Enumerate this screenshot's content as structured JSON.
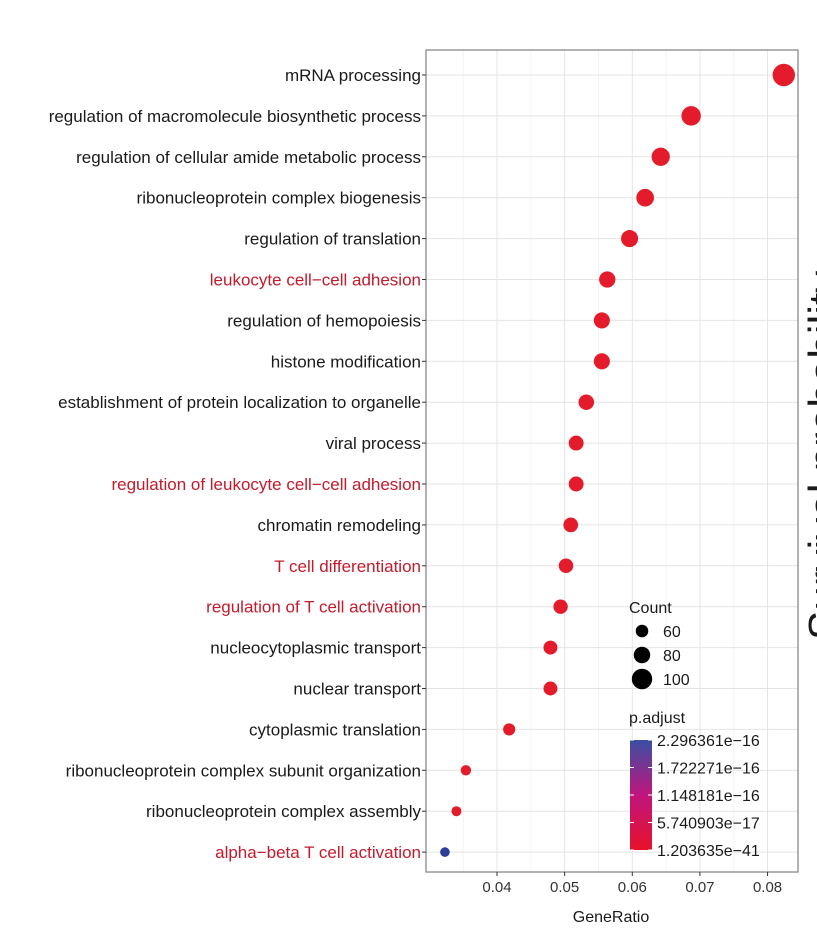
{
  "chart_data": {
    "type": "scatter",
    "xlabel": "GeneRatio",
    "xlim": [
      0.0295,
      0.0845
    ],
    "x_ticks": [
      {
        "value": 0.04,
        "label": "0.04"
      },
      {
        "value": 0.05,
        "label": "0.05"
      },
      {
        "value": 0.06,
        "label": "0.06"
      },
      {
        "value": 0.07,
        "label": "0.07"
      },
      {
        "value": 0.08,
        "label": "0.08"
      }
    ],
    "terms": [
      {
        "term": "mRNA processing",
        "x": 0.0824,
        "count": 110,
        "color": "#e41b2a",
        "label_color": "#1a1a1a"
      },
      {
        "term": "regulation of macromolecule biosynthetic process",
        "x": 0.0687,
        "count": 95,
        "color": "#e41b2a",
        "label_color": "#1a1a1a"
      },
      {
        "term": "regulation of cellular amide metabolic process",
        "x": 0.0642,
        "count": 89,
        "color": "#e41b2a",
        "label_color": "#1a1a1a"
      },
      {
        "term": "ribonucleoprotein complex biogenesis",
        "x": 0.0619,
        "count": 86,
        "color": "#e41b2a",
        "label_color": "#1a1a1a"
      },
      {
        "term": "regulation of translation",
        "x": 0.0596,
        "count": 83,
        "color": "#e41b2a",
        "label_color": "#1a1a1a"
      },
      {
        "term": "leukocyte cell−cell adhesion",
        "x": 0.0563,
        "count": 79,
        "color": "#e41b2a",
        "label_color": "#c41a2c"
      },
      {
        "term": "regulation of hemopoiesis",
        "x": 0.0555,
        "count": 78,
        "color": "#e41b2a",
        "label_color": "#1a1a1a"
      },
      {
        "term": "histone modification",
        "x": 0.0555,
        "count": 78,
        "color": "#e41b2a",
        "label_color": "#1a1a1a"
      },
      {
        "term": "establishment of protein localization to organelle",
        "x": 0.0532,
        "count": 75,
        "color": "#e41b2a",
        "label_color": "#1a1a1a"
      },
      {
        "term": "viral process",
        "x": 0.0517,
        "count": 72,
        "color": "#e41b2a",
        "label_color": "#1a1a1a"
      },
      {
        "term": "regulation of leukocyte cell−cell adhesion",
        "x": 0.0517,
        "count": 72,
        "color": "#e41b2a",
        "label_color": "#c41a2c"
      },
      {
        "term": "chromatin remodeling",
        "x": 0.0509,
        "count": 71,
        "color": "#e41b2a",
        "label_color": "#1a1a1a"
      },
      {
        "term": "T cell differentiation",
        "x": 0.0502,
        "count": 70,
        "color": "#e41b2a",
        "label_color": "#c41a2c"
      },
      {
        "term": "regulation of T cell activation",
        "x": 0.0494,
        "count": 69,
        "color": "#e41b2a",
        "label_color": "#c41a2c"
      },
      {
        "term": "nucleocytoplasmic transport",
        "x": 0.0479,
        "count": 67,
        "color": "#e41b2a",
        "label_color": "#1a1a1a"
      },
      {
        "term": "nuclear transport",
        "x": 0.0479,
        "count": 67,
        "color": "#e41b2a",
        "label_color": "#1a1a1a"
      },
      {
        "term": "cytoplasmic translation",
        "x": 0.0418,
        "count": 58,
        "color": "#e41b2a",
        "label_color": "#1a1a1a"
      },
      {
        "term": "ribonucleoprotein complex subunit organization",
        "x": 0.0354,
        "count": 49,
        "color": "#e41b2a",
        "label_color": "#1a1a1a"
      },
      {
        "term": "ribonucleoprotein complex assembly",
        "x": 0.034,
        "count": 47,
        "color": "#e41b2a",
        "label_color": "#1a1a1a"
      },
      {
        "term": "alpha−beta T cell activation",
        "x": 0.0323,
        "count": 45,
        "color": "#2c3e96",
        "label_color": "#c41a2c"
      }
    ],
    "legend_size": {
      "title": "Count",
      "entries": [
        {
          "count": 60,
          "label": "60"
        },
        {
          "count": 80,
          "label": "80"
        },
        {
          "count": 100,
          "label": "100"
        }
      ]
    },
    "legend_color": {
      "title": "p.adjust",
      "labels": [
        "2.296361e−16",
        "1.722271e−16",
        "1.148181e−16",
        "5.740903e−17",
        "1.203635e−41"
      ],
      "gradient_top": "#3a4fa3",
      "gradient_mid": "#c0157e",
      "gradient_bottom": "#e8122a"
    }
  },
  "side_label": "Survival probability"
}
